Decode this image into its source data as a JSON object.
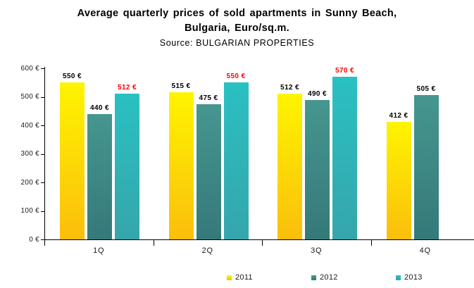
{
  "title": {
    "line1": "Average quarterly prices of sold apartments in Sunny Beach,",
    "line2": "Bulgaria, Euro/sq.m.",
    "source": "Source: BULGARIAN PROPERTIES"
  },
  "chart_data": {
    "type": "bar",
    "title": "Average quarterly prices of sold apartments in Sunny Beach, Bulgaria, Euro/sq.m.",
    "subtitle": "Source: BULGARIAN PROPERTIES",
    "categories": [
      "1Q",
      "2Q",
      "3Q",
      "4Q"
    ],
    "series": [
      {
        "name": "2011",
        "values": [
          550,
          515,
          512,
          412
        ],
        "color_top": "#FEF400",
        "color_bottom": "#FBBE0C",
        "label_color": "#000000"
      },
      {
        "name": "2012",
        "values": [
          440,
          475,
          490,
          505
        ],
        "color_top": "#46968F",
        "color_bottom": "#35797A",
        "label_color": "#000000"
      },
      {
        "name": "2013",
        "values": [
          512,
          550,
          570,
          null
        ],
        "color_top": "#2AC0C2",
        "color_bottom": "#35A6AB",
        "label_color": "#FF0000"
      }
    ],
    "value_suffix": " €",
    "ylim": [
      0,
      600
    ],
    "ytick_step": 100,
    "ytick_labels": [
      "0 €",
      "100 €",
      "200 €",
      "300 €",
      "400 €",
      "500 €",
      "600 €"
    ],
    "xlabel": "",
    "ylabel": "",
    "grid": false,
    "legend_position": "bottom"
  }
}
